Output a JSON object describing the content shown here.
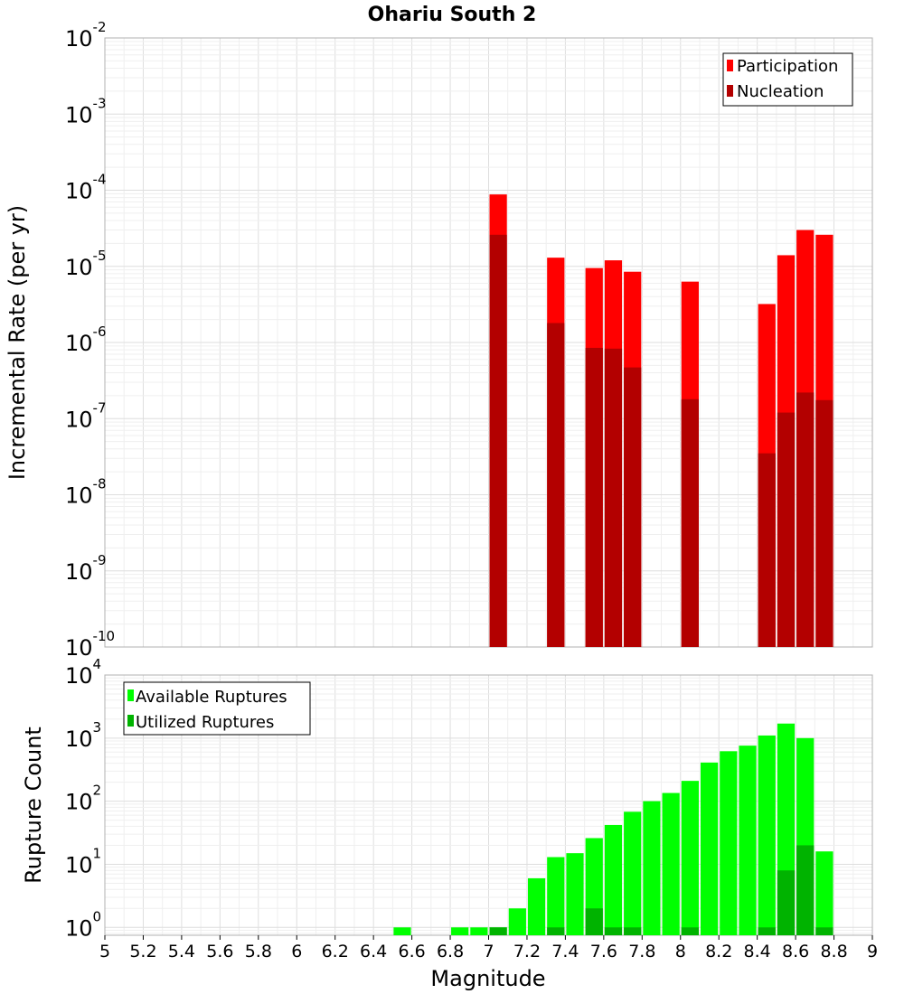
{
  "chart_data": [
    {
      "type": "bar",
      "title": "Ohariu South 2",
      "xlabel": "Magnitude",
      "ylabel": "Incremental Rate (per yr)",
      "yscale": "log",
      "xlim": [
        5,
        9
      ],
      "ylim": [
        1e-10,
        0.01
      ],
      "y_ticks": [
        {
          "base": "10",
          "exp": "-10"
        },
        {
          "base": "10",
          "exp": "-9"
        },
        {
          "base": "10",
          "exp": "-8"
        },
        {
          "base": "10",
          "exp": "-7"
        },
        {
          "base": "10",
          "exp": "-6"
        },
        {
          "base": "10",
          "exp": "-5"
        },
        {
          "base": "10",
          "exp": "-4"
        },
        {
          "base": "10",
          "exp": "-3"
        },
        {
          "base": "10",
          "exp": "-2"
        }
      ],
      "grid": true,
      "legend_position": "top-right",
      "bar_width": 0.1,
      "series": [
        {
          "name": "Participation",
          "color": "#ff0000",
          "points": [
            {
              "x": 7.05,
              "y": 8.8e-05
            },
            {
              "x": 7.35,
              "y": 1.3e-05
            },
            {
              "x": 7.55,
              "y": 9.5e-06
            },
            {
              "x": 7.65,
              "y": 1.2e-05
            },
            {
              "x": 7.75,
              "y": 8.5e-06
            },
            {
              "x": 8.05,
              "y": 6.3e-06
            },
            {
              "x": 8.45,
              "y": 3.2e-06
            },
            {
              "x": 8.55,
              "y": 1.4e-05
            },
            {
              "x": 8.65,
              "y": 3e-05
            },
            {
              "x": 8.75,
              "y": 2.6e-05
            }
          ]
        },
        {
          "name": "Nucleation",
          "color": "#b30000",
          "points": [
            {
              "x": 7.05,
              "y": 2.6e-05
            },
            {
              "x": 7.35,
              "y": 1.8e-06
            },
            {
              "x": 7.55,
              "y": 8.5e-07
            },
            {
              "x": 7.65,
              "y": 8.3e-07
            },
            {
              "x": 7.75,
              "y": 4.7e-07
            },
            {
              "x": 8.05,
              "y": 1.8e-07
            },
            {
              "x": 8.45,
              "y": 3.5e-08
            },
            {
              "x": 8.55,
              "y": 1.2e-07
            },
            {
              "x": 8.65,
              "y": 2.2e-07
            },
            {
              "x": 8.75,
              "y": 1.75e-07
            }
          ]
        }
      ]
    },
    {
      "type": "bar",
      "xlabel": "Magnitude",
      "ylabel": "Rupture Count",
      "yscale": "log",
      "xlim": [
        5,
        9
      ],
      "ylim": [
        0.75,
        10000
      ],
      "x_ticks": [
        "5",
        "5.2",
        "5.4",
        "5.6",
        "5.8",
        "6",
        "6.2",
        "6.4",
        "6.6",
        "6.8",
        "7",
        "7.2",
        "7.4",
        "7.6",
        "7.8",
        "8",
        "8.2",
        "8.4",
        "8.6",
        "8.8",
        "9"
      ],
      "y_ticks": [
        {
          "base": "10",
          "exp": "0"
        },
        {
          "base": "10",
          "exp": "1"
        },
        {
          "base": "10",
          "exp": "2"
        },
        {
          "base": "10",
          "exp": "3"
        },
        {
          "base": "10",
          "exp": "4"
        }
      ],
      "grid": true,
      "legend_position": "top-left",
      "bar_width": 0.1,
      "series": [
        {
          "name": "Available Ruptures",
          "color": "#00ff00",
          "points": [
            {
              "x": 6.55,
              "y": 1
            },
            {
              "x": 6.85,
              "y": 1
            },
            {
              "x": 6.95,
              "y": 1
            },
            {
              "x": 7.05,
              "y": 1
            },
            {
              "x": 7.15,
              "y": 2
            },
            {
              "x": 7.25,
              "y": 6
            },
            {
              "x": 7.35,
              "y": 13
            },
            {
              "x": 7.45,
              "y": 15
            },
            {
              "x": 7.55,
              "y": 26
            },
            {
              "x": 7.65,
              "y": 42
            },
            {
              "x": 7.75,
              "y": 68
            },
            {
              "x": 7.85,
              "y": 100
            },
            {
              "x": 7.95,
              "y": 135
            },
            {
              "x": 8.05,
              "y": 210
            },
            {
              "x": 8.15,
              "y": 410
            },
            {
              "x": 8.25,
              "y": 620
            },
            {
              "x": 8.35,
              "y": 760
            },
            {
              "x": 8.45,
              "y": 1100
            },
            {
              "x": 8.55,
              "y": 1700
            },
            {
              "x": 8.65,
              "y": 1000
            },
            {
              "x": 8.75,
              "y": 16
            }
          ]
        },
        {
          "name": "Utilized Ruptures",
          "color": "#00b300",
          "points": [
            {
              "x": 7.05,
              "y": 1
            },
            {
              "x": 7.35,
              "y": 1
            },
            {
              "x": 7.55,
              "y": 2
            },
            {
              "x": 7.65,
              "y": 1
            },
            {
              "x": 7.75,
              "y": 1
            },
            {
              "x": 8.05,
              "y": 1
            },
            {
              "x": 8.45,
              "y": 1
            },
            {
              "x": 8.55,
              "y": 8
            },
            {
              "x": 8.65,
              "y": 20
            },
            {
              "x": 8.75,
              "y": 1
            }
          ]
        }
      ]
    }
  ]
}
